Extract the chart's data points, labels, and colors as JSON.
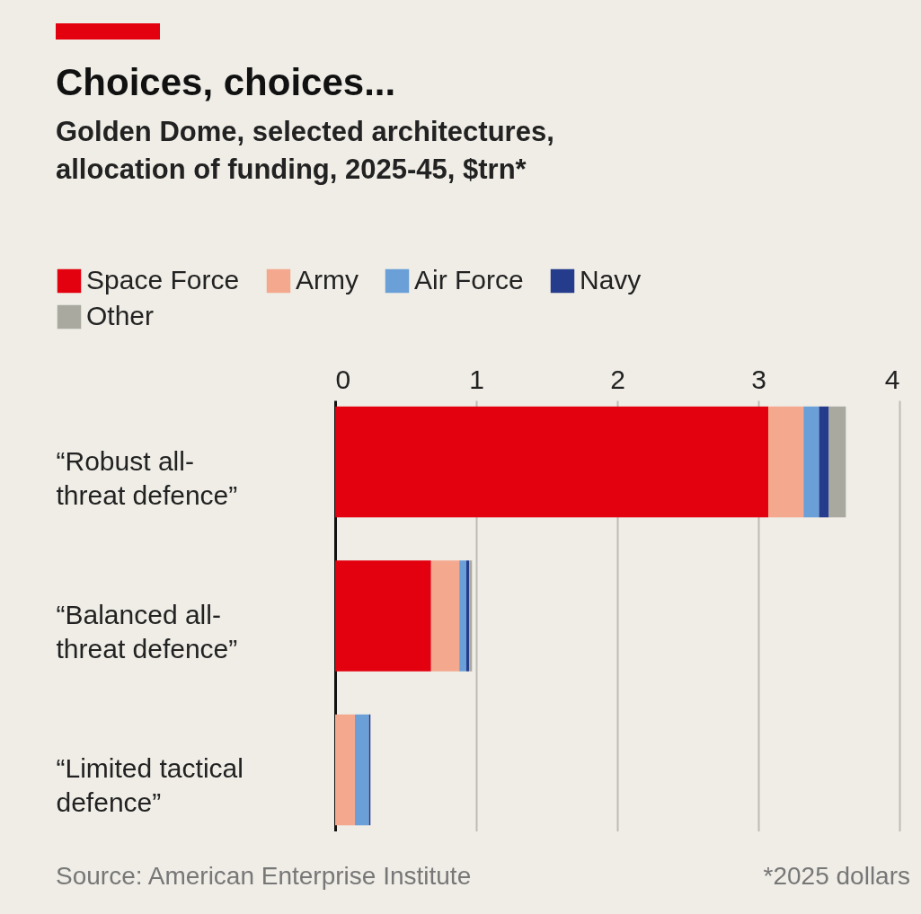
{
  "chart_data": {
    "type": "bar",
    "orientation": "horizontal",
    "stacked": true,
    "title": "Choices, choices...",
    "subtitle": "Golden Dome, selected architectures, allocation of funding, 2025-45, $trn*",
    "categories": [
      "“Robust all-threat defence”",
      "“Balanced all-threat defence”",
      "“Limited tactical defence”"
    ],
    "series": [
      {
        "name": "Space Force",
        "color": "#e3000f",
        "values": [
          3.07,
          0.68,
          0
        ]
      },
      {
        "name": "Army",
        "color": "#f4a98f",
        "values": [
          0.25,
          0.2,
          0.14
        ]
      },
      {
        "name": "Air Force",
        "color": "#6a9fd8",
        "values": [
          0.11,
          0.05,
          0.1
        ]
      },
      {
        "name": "Navy",
        "color": "#253b8c",
        "values": [
          0.07,
          0.02,
          0.01
        ]
      },
      {
        "name": "Other",
        "color": "#a9a9a0",
        "values": [
          0.12,
          0.02,
          0
        ]
      }
    ],
    "xlim": [
      0,
      4
    ],
    "xticks": [
      0,
      1,
      2,
      3,
      4
    ],
    "grid": "x",
    "legend": "top left",
    "annotations": [
      "Source: American Enterprise Institute",
      "*2025 dollars"
    ]
  }
}
